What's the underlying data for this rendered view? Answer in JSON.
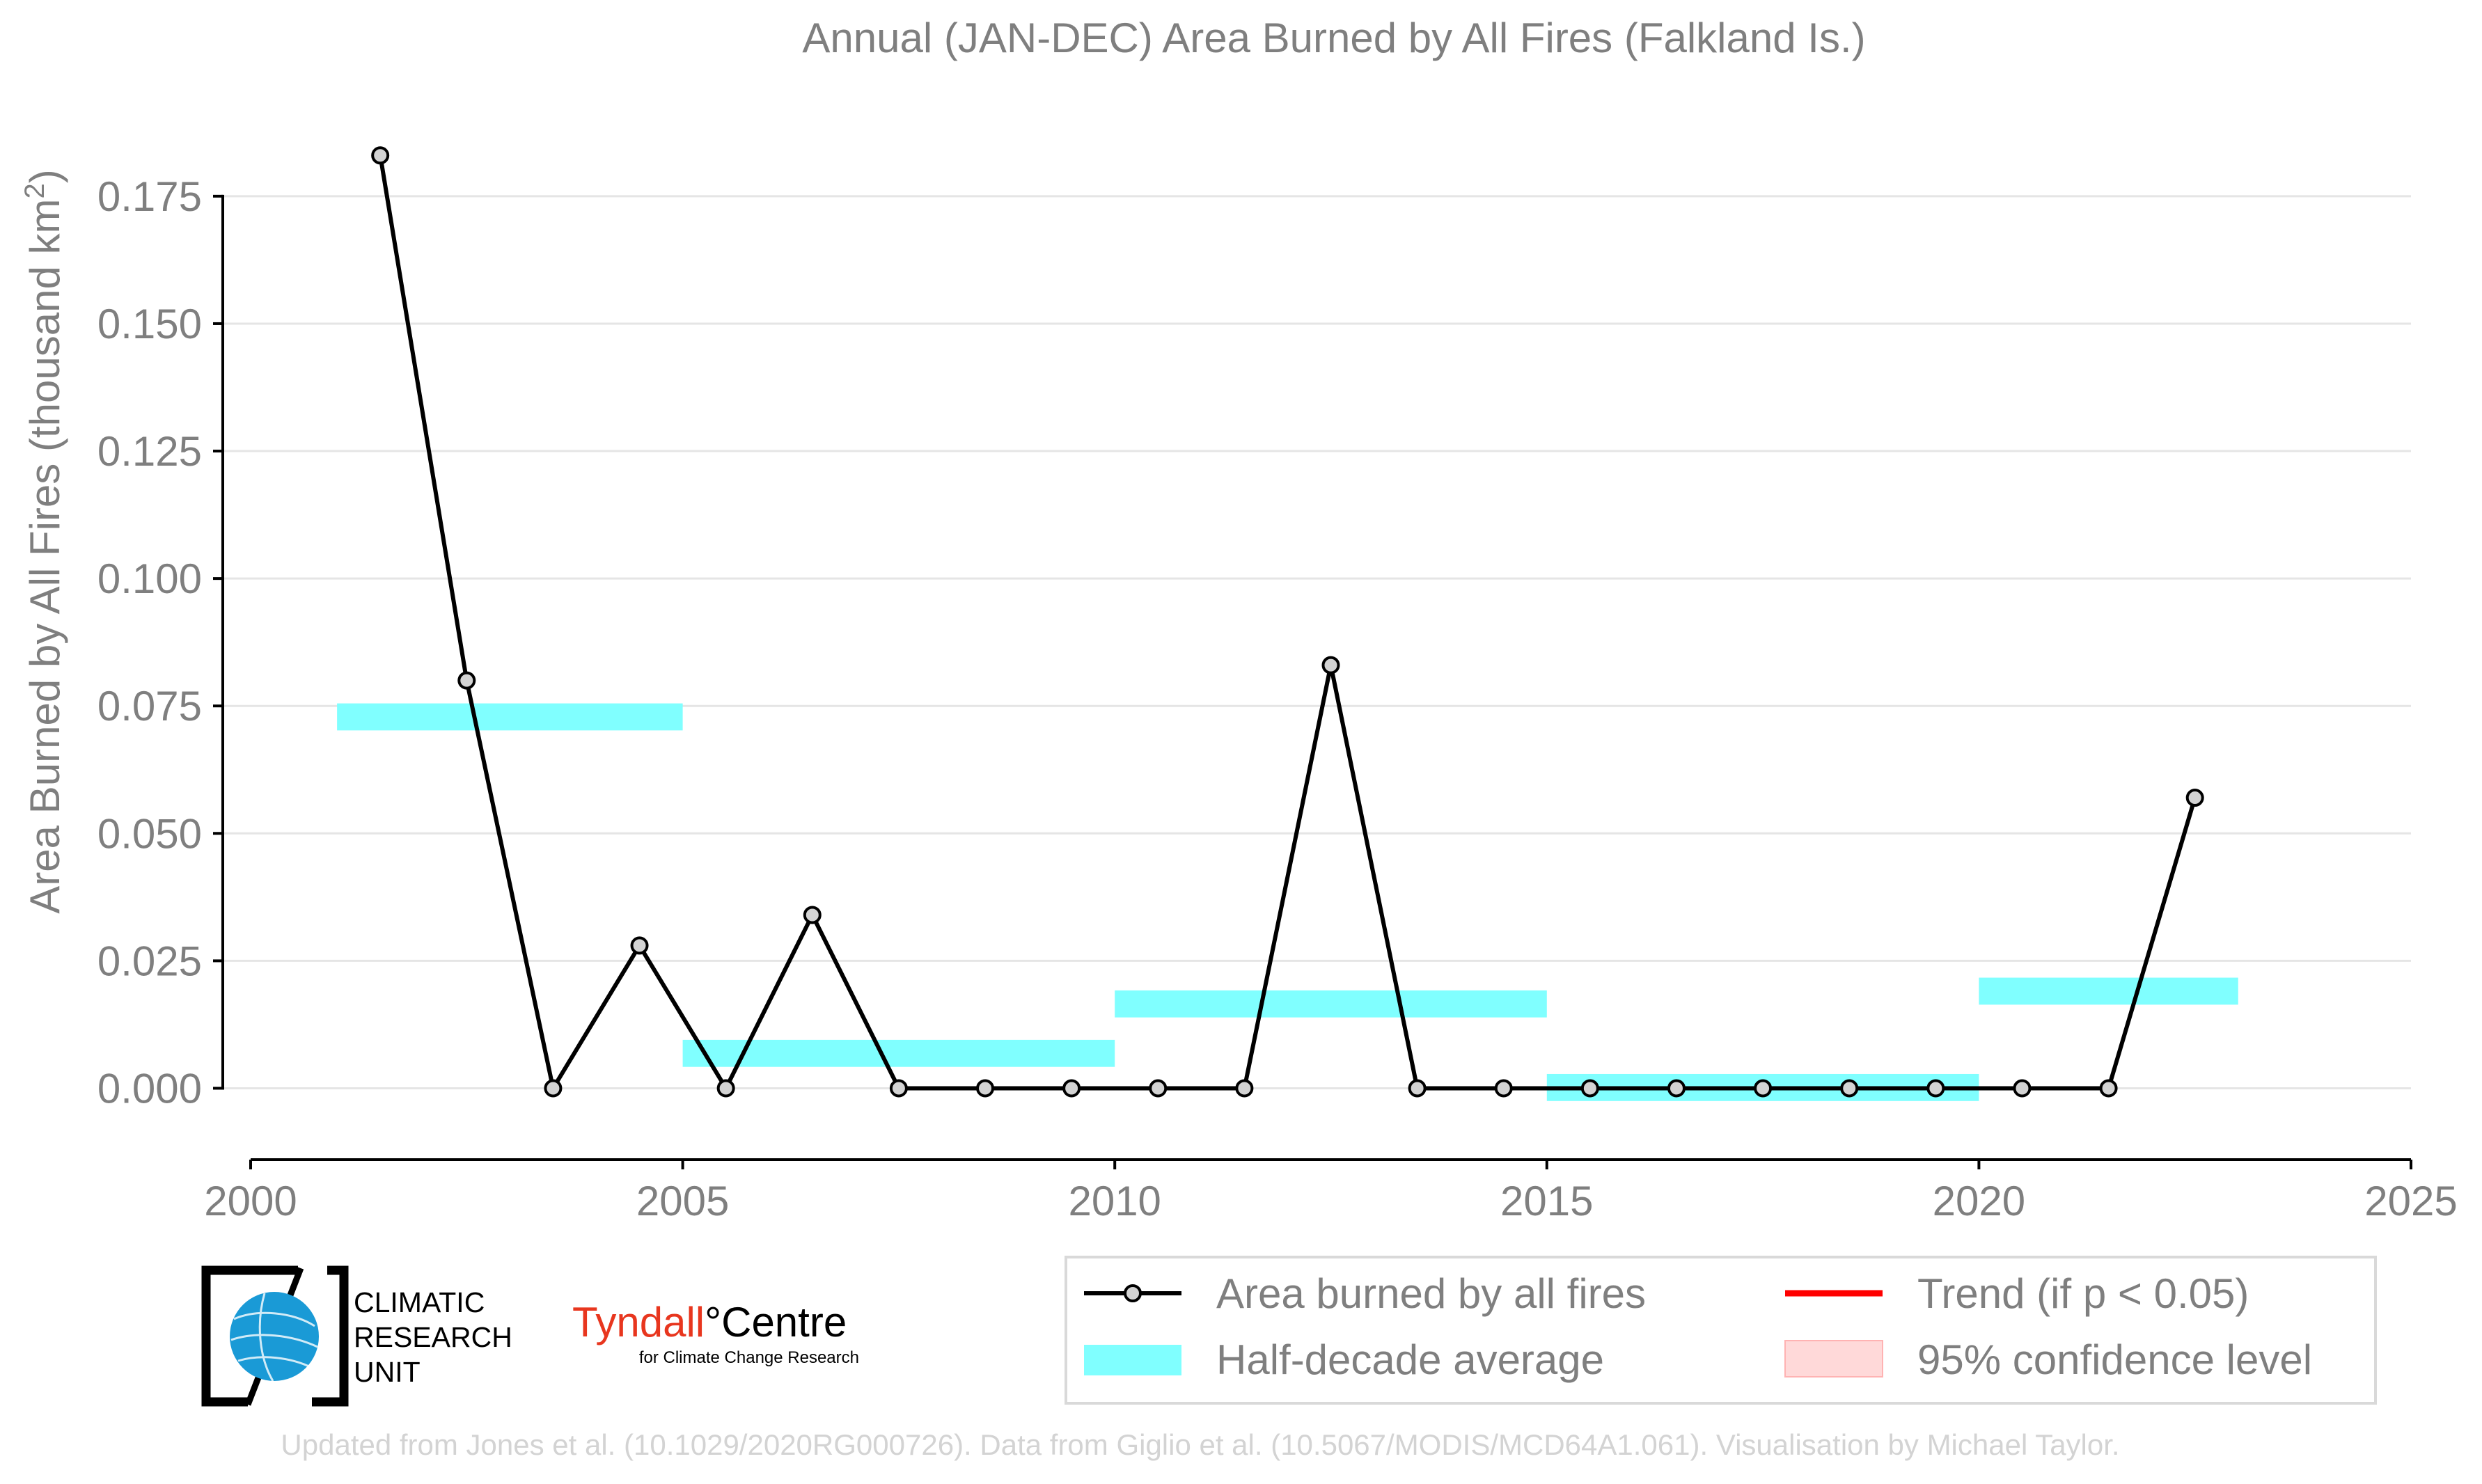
{
  "chart_data": {
    "type": "line",
    "title": "Annual (JAN-DEC) Area Burned by All Fires (Falkland Is.)",
    "ylabel": "Area Burned by All Fires (thousand km",
    "ylabel_superscript": "2",
    "ylabel_close": ")",
    "xlabel": "",
    "xlim": [
      2000,
      2025
    ],
    "ylim": [
      -0.014,
      0.19
    ],
    "xticks": [
      2000,
      2005,
      2010,
      2015,
      2020,
      2025
    ],
    "yticks": [
      0.0,
      0.025,
      0.05,
      0.075,
      0.1,
      0.125,
      0.15,
      0.175
    ],
    "ytick_labels": [
      "0.000",
      "0.025",
      "0.050",
      "0.075",
      "0.100",
      "0.125",
      "0.150",
      "0.175"
    ],
    "grid": "horizontal",
    "series": [
      {
        "name": "Area burned by all fires",
        "color": "#000000",
        "marker_fill": "#d3d3d3",
        "x": [
          2001.5,
          2002.5,
          2003.5,
          2004.5,
          2005.5,
          2006.5,
          2007.5,
          2008.5,
          2009.5,
          2010.5,
          2011.5,
          2012.5,
          2013.5,
          2014.5,
          2015.5,
          2016.5,
          2017.5,
          2018.5,
          2019.5,
          2020.5,
          2021.5,
          2022.5
        ],
        "values": [
          0.183,
          0.08,
          0.0,
          0.028,
          0.0,
          0.034,
          0.0,
          0.0,
          0.0,
          0.0,
          0.0,
          0.083,
          0.0,
          0.0,
          0.0,
          0.0,
          0.0,
          0.0,
          0.0,
          0.0,
          0.0,
          0.057
        ]
      }
    ],
    "half_decade_average": {
      "name": "Half-decade average",
      "color": "#80ffff",
      "bands": [
        {
          "x0": 2001,
          "x1": 2005,
          "y0": 0.0702,
          "y1": 0.0755
        },
        {
          "x0": 2005,
          "x1": 2010,
          "y0": 0.0042,
          "y1": 0.0095
        },
        {
          "x0": 2010,
          "x1": 2015,
          "y0": 0.0139,
          "y1": 0.0192
        },
        {
          "x0": 2015,
          "x1": 2020,
          "y0": -0.0025,
          "y1": 0.0028
        },
        {
          "x0": 2020,
          "x1": 2023,
          "y0": 0.0164,
          "y1": 0.0217
        }
      ]
    },
    "legend": {
      "position": "bottom-right",
      "entries": [
        {
          "label": "Area burned by all fires",
          "kind": "line-marker",
          "color": "#000000"
        },
        {
          "label": "Trend (if p < 0.05)",
          "kind": "line",
          "color": "#ff0000"
        },
        {
          "label": "Half-decade average",
          "kind": "band",
          "color": "#80ffff"
        },
        {
          "label": "95% confidence level",
          "kind": "patch",
          "color": "#ffd9d9"
        }
      ]
    },
    "colors": {
      "text": "#7f7f7f",
      "grid": "#e5e5e5",
      "axis": "#000000",
      "footer": "#d3d3d3"
    }
  },
  "logos": {
    "cru": {
      "line1": "CLIMATIC",
      "line2": "RESEARCH",
      "line3": "UNIT",
      "globe_color": "#1a9ad6"
    },
    "tyndall": {
      "name": "Tyndall",
      "degree": "°",
      "suffix": "Centre",
      "tagline": "for Climate Change Research",
      "name_color": "#e8361e"
    }
  },
  "footer": "Updated from Jones et al. (10.1029/2020RG000726). Data from Giglio et al. (10.5067/MODIS/MCD64A1.061). Visualisation by Michael Taylor."
}
